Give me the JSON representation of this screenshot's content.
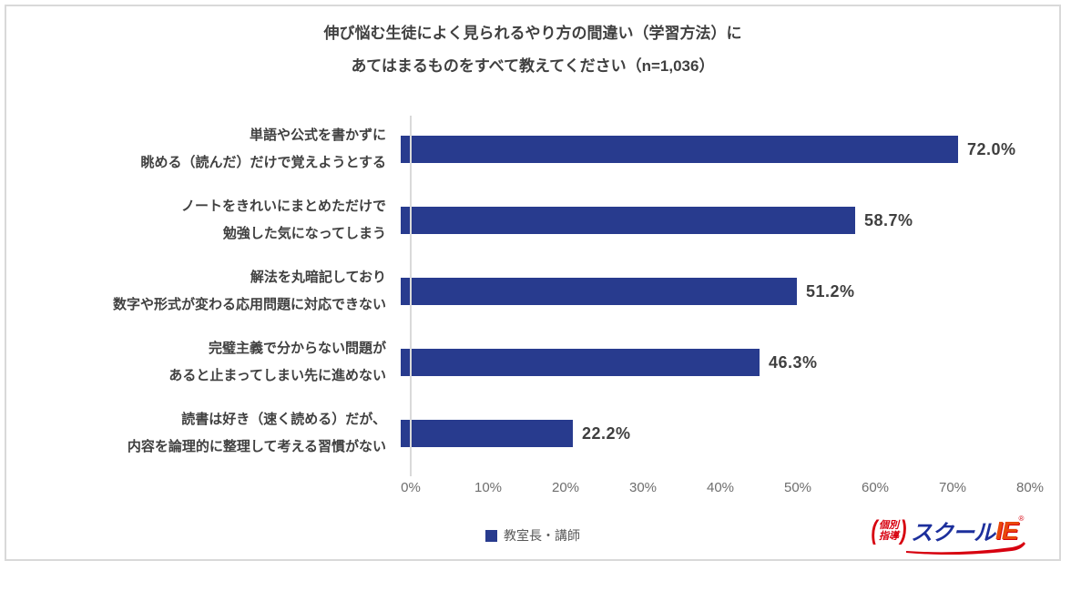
{
  "title": {
    "line1": "伸び悩む生徒によく見られるやり方の間違い（学習方法）に",
    "line2": "あてはまるものをすべて教えてください（n=1,036）"
  },
  "chart_data": {
    "type": "bar",
    "orientation": "horizontal",
    "title": "伸び悩む生徒によく見られるやり方の間違い（学習方法）にあてはまるものをすべて教えてください（n=1,036）",
    "categories": [
      [
        "単語や公式を書かずに",
        "眺める（読んだ）だけで覚えようとする"
      ],
      [
        "ノートをきれいにまとめただけで",
        "勉強した気になってしまう"
      ],
      [
        "解法を丸暗記しており",
        "数字や形式が変わる応用問題に対応できない"
      ],
      [
        "完璧主義で分からない問題が",
        "あると止まってしまい先に進めない"
      ],
      [
        "読書は好き（速く読める）だが、",
        "内容を論理的に整理して考える習慣がない"
      ]
    ],
    "values": [
      72.0,
      58.7,
      51.2,
      46.3,
      22.2
    ],
    "value_labels": [
      "72.0%",
      "58.7%",
      "51.2%",
      "46.3%",
      "22.2%"
    ],
    "xlim": [
      0,
      80
    ],
    "x_ticks": [
      "0%",
      "10%",
      "20%",
      "30%",
      "40%",
      "50%",
      "60%",
      "70%",
      "80%"
    ],
    "grid": false,
    "legend": {
      "label": "教室長・講師",
      "position": "bottom"
    },
    "bar_color": "#283b8e"
  },
  "logo": {
    "kobetsu_top": "個別",
    "kobetsu_bottom": "指導",
    "school": "スクール",
    "ie": "IE",
    "reg_mark": "®"
  }
}
